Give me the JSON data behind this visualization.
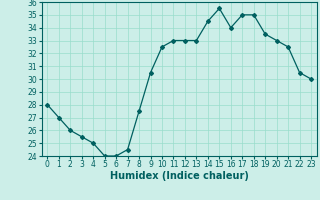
{
  "x": [
    0,
    1,
    2,
    3,
    4,
    5,
    6,
    7,
    8,
    9,
    10,
    11,
    12,
    13,
    14,
    15,
    16,
    17,
    18,
    19,
    20,
    21,
    22,
    23
  ],
  "y": [
    28,
    27,
    26,
    25.5,
    25,
    24,
    24,
    24.5,
    27.5,
    30.5,
    32.5,
    33,
    33,
    33,
    34.5,
    35.5,
    34,
    35,
    35,
    33.5,
    33,
    32.5,
    30.5,
    30
  ],
  "line_color": "#006060",
  "marker": "D",
  "marker_size": 2,
  "bg_color": "#cceee8",
  "grid_color": "#99ddcc",
  "xlabel": "Humidex (Indice chaleur)",
  "xlim": [
    -0.5,
    23.5
  ],
  "ylim": [
    24,
    36
  ],
  "xticks": [
    0,
    1,
    2,
    3,
    4,
    5,
    6,
    7,
    8,
    9,
    10,
    11,
    12,
    13,
    14,
    15,
    16,
    17,
    18,
    19,
    20,
    21,
    22,
    23
  ],
  "yticks": [
    24,
    25,
    26,
    27,
    28,
    29,
    30,
    31,
    32,
    33,
    34,
    35,
    36
  ],
  "tick_fontsize": 5.5,
  "xlabel_fontsize": 7
}
